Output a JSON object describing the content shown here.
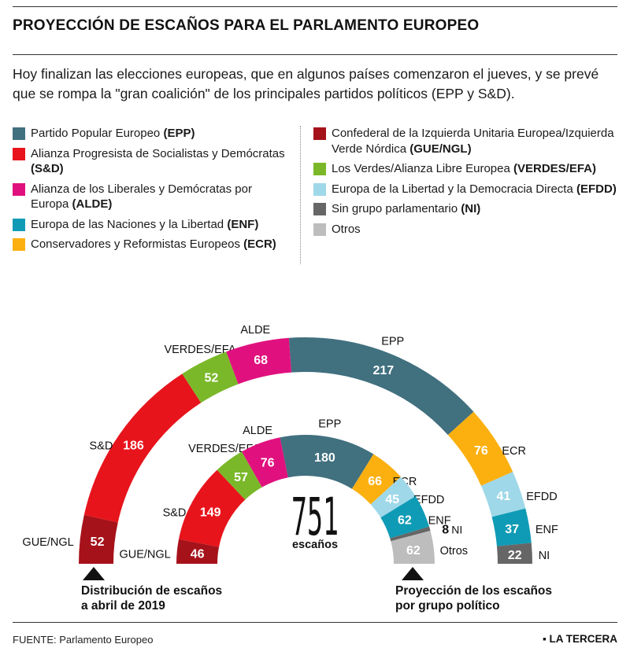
{
  "title": "PROYECCIÓN DE ESCAÑOS PARA EL PARLAMENTO EUROPEO",
  "subtitle": "Hoy finalizan las elecciones europeas, que en algunos países comenzaron el jueves, y se prevé que se rompa la \"gran coalición\" de los principales partidos políticos (EPP y S&D).",
  "legend": {
    "left": [
      {
        "name": "Partido Popular Europeo ",
        "abbr": "(EPP)",
        "color": "#41707f"
      },
      {
        "name": "Alianza Progresista de Socialistas y Demócratas ",
        "abbr": "(S&D)",
        "color": "#e8141c"
      },
      {
        "name": "Alianza de los Liberales y Demócratas por Europa ",
        "abbr": "(ALDE)",
        "color": "#e0117e"
      },
      {
        "name": "Europa de las Naciones y la Libertad ",
        "abbr": "(ENF)",
        "color": "#0f9bb5"
      },
      {
        "name": "Conservadores y Reformistas Europeos ",
        "abbr": "(ECR)",
        "color": "#fbb010"
      }
    ],
    "right": [
      {
        "name": "Confederal de la Izquierda Unitaria Europea/Izquierda Verde Nórdica ",
        "abbr": "(GUE/NGL)",
        "color": "#a6121a"
      },
      {
        "name": "Los Verdes/Alianza Libre Europea ",
        "abbr": "(VERDES/EFA)",
        "color": "#7ab829"
      },
      {
        "name": "Europa de la Libertad y la Democracia Directa ",
        "abbr": "(EFDD)",
        "color": "#9fd8e8"
      },
      {
        "name": "Sin grupo parlamentario ",
        "abbr": "(NI)",
        "color": "#666666"
      },
      {
        "name": "Otros",
        "abbr": "",
        "color": "#bdbdbd"
      }
    ]
  },
  "chart_data": [
    {
      "type": "pie",
      "subtype": "semicircle",
      "title": "Distribución de escaños a abril de 2019",
      "total": 751,
      "order": "left to right",
      "slices": [
        {
          "group": "GUE/NGL",
          "value": 52,
          "color": "#a6121a"
        },
        {
          "group": "S&D",
          "value": 186,
          "color": "#e8141c"
        },
        {
          "group": "VERDES/EFA",
          "value": 52,
          "color": "#7ab829"
        },
        {
          "group": "ALDE",
          "value": 68,
          "color": "#e0117e"
        },
        {
          "group": "EPP",
          "value": 217,
          "color": "#41707f"
        },
        {
          "group": "ECR",
          "value": 76,
          "color": "#fbb010"
        },
        {
          "group": "EFDD",
          "value": 41,
          "color": "#9fd8e8"
        },
        {
          "group": "ENF",
          "value": 37,
          "color": "#0f9bb5"
        },
        {
          "group": "NI",
          "value": 22,
          "color": "#666666"
        }
      ]
    },
    {
      "type": "pie",
      "subtype": "semicircle",
      "title": "Proyección de los escaños por grupo político",
      "total": 751,
      "order": "left to right",
      "slices": [
        {
          "group": "GUE/NGL",
          "value": 46,
          "color": "#a6121a"
        },
        {
          "group": "S&D",
          "value": 149,
          "color": "#e8141c"
        },
        {
          "group": "VERDES/EFA",
          "value": 57,
          "color": "#7ab829"
        },
        {
          "group": "ALDE",
          "value": 76,
          "color": "#e0117e"
        },
        {
          "group": "EPP",
          "value": 180,
          "color": "#41707f"
        },
        {
          "group": "ECR",
          "value": 66,
          "color": "#fbb010"
        },
        {
          "group": "EFDD",
          "value": 45,
          "color": "#9fd8e8"
        },
        {
          "group": "ENF",
          "value": 62,
          "color": "#0f9bb5"
        },
        {
          "group": "NI",
          "value": 8,
          "color": "#666666"
        },
        {
          "group": "Otros",
          "value": 62,
          "color": "#bdbdbd"
        }
      ]
    }
  ],
  "center": {
    "number": "751",
    "label": "escaños"
  },
  "annotations": {
    "outer": "Distribución de escaños a abril de 2019",
    "inner": "Proyección de los escaños por grupo político"
  },
  "footer": {
    "source": "FUENTE: Parlamento Europeo",
    "brand": "LA TERCERA"
  }
}
